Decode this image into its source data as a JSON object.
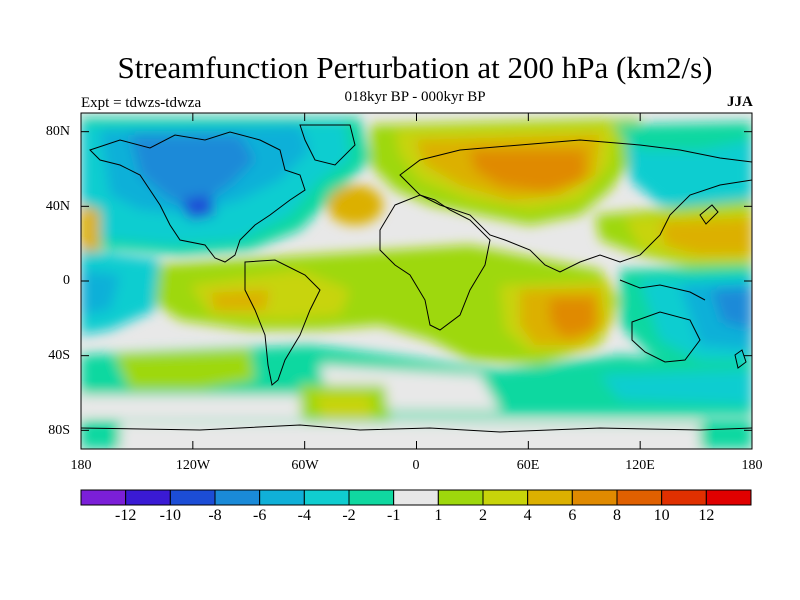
{
  "title": "Streamfunction Perturbation at 200 hPa (km2/s)",
  "subtitle": "018kyr BP - 000kyr BP",
  "experiment": "Expt = tdwzs-tdwza",
  "season": "JJA",
  "map": {
    "projection": "cylindrical equidistant",
    "lon_range": [
      -180,
      180
    ],
    "lat_range": [
      -90,
      90
    ],
    "lat_tick_labels": [
      "80N",
      "40N",
      "0",
      "40S",
      "80S"
    ],
    "lat_tick_values": [
      80,
      40,
      0,
      -40,
      -80
    ],
    "lon_tick_labels": [
      "180",
      "120W",
      "60W",
      "0",
      "60E",
      "120E",
      "180"
    ],
    "lon_tick_values": [
      -180,
      -120,
      -60,
      0,
      60,
      120,
      180
    ]
  },
  "colorbar": {
    "labels": [
      "-12",
      "-10",
      "-8",
      "-6",
      "-4",
      "-2",
      "-1",
      "1",
      "2",
      "4",
      "6",
      "8",
      "10",
      "12"
    ],
    "colors": [
      "#7b1fd8",
      "#3a1ad4",
      "#1c4dd6",
      "#1a8ad8",
      "#10b0d8",
      "#10cdd0",
      "#10d8a0",
      "#e8e8e8",
      "#9ed80c",
      "#c8d40a",
      "#dcb000",
      "#e08a00",
      "#e06000",
      "#e03000",
      "#e00000"
    ]
  },
  "chart_data": {
    "type": "map",
    "variable": "Streamfunction Perturbation at 200 hPa",
    "units": "km2/s",
    "levels": [
      -12,
      -10,
      -8,
      -6,
      -4,
      -2,
      -1,
      1,
      2,
      4,
      6,
      8,
      10,
      12
    ],
    "features": [
      {
        "region": "North America / Canada",
        "sign": "negative",
        "min": -8
      },
      {
        "region": "North Atlantic",
        "sign": "positive",
        "max": 4
      },
      {
        "region": "Northern Eurasia / Siberia",
        "sign": "positive",
        "max": 8
      },
      {
        "region": "Western North Pacific",
        "sign": "positive",
        "max": 6
      },
      {
        "region": "Arctic Pacific sector",
        "sign": "negative",
        "min": -4
      },
      {
        "region": "Tropical Atlantic / South America",
        "sign": "positive",
        "max": 4
      },
      {
        "region": "Indian Ocean",
        "sign": "positive",
        "max": 8
      },
      {
        "region": "Maritime Continent / West Pacific",
        "sign": "negative",
        "min": -8
      },
      {
        "region": "Southern Ocean 40-60S",
        "sign": "negative",
        "min": -4
      },
      {
        "region": "South Pacific",
        "sign": "positive",
        "max": 2
      },
      {
        "region": "Antarctica (Atlantic sector)",
        "sign": "positive",
        "max": 4
      }
    ]
  }
}
